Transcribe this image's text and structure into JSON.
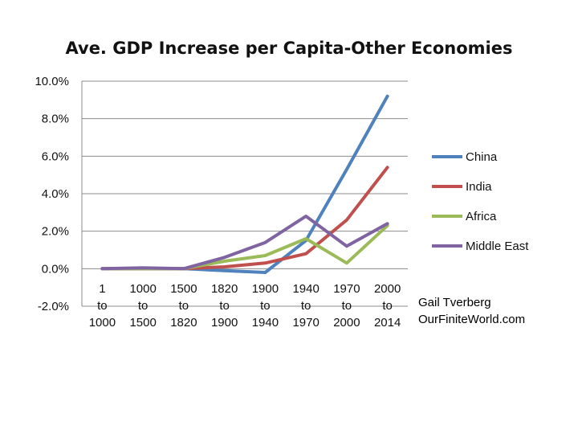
{
  "chart_data": {
    "type": "line",
    "title": "Ave. GDP Increase per Capita-Other Economies",
    "xlabel": "",
    "ylabel": "",
    "categories": [
      [
        "1",
        "to",
        "1000"
      ],
      [
        "1000",
        "to",
        "1500"
      ],
      [
        "1500",
        "to",
        "1820"
      ],
      [
        "1820",
        "to",
        "1900"
      ],
      [
        "1900",
        "to",
        "1940"
      ],
      [
        "1940",
        "to",
        "1970"
      ],
      [
        "1970",
        "to",
        "2000"
      ],
      [
        "2000",
        "to",
        "2014"
      ]
    ],
    "yticks": [
      "-2.0%",
      "0.0%",
      "2.0%",
      "4.0%",
      "6.0%",
      "8.0%",
      "10.0%"
    ],
    "ylim": [
      -2,
      10
    ],
    "grid": true,
    "legend_position": "right",
    "series": [
      {
        "name": "China",
        "color": "#4f81bd",
        "values": [
          0.0,
          0.0,
          0.0,
          -0.1,
          -0.2,
          1.5,
          5.3,
          9.2
        ]
      },
      {
        "name": "India",
        "color": "#c0504d",
        "values": [
          0.0,
          0.0,
          0.0,
          0.1,
          0.3,
          0.8,
          2.6,
          5.4
        ]
      },
      {
        "name": "Africa",
        "color": "#9bbb59",
        "values": [
          0.0,
          0.0,
          0.0,
          0.4,
          0.7,
          1.6,
          0.3,
          2.3
        ]
      },
      {
        "name": "Middle East",
        "color": "#8064a2",
        "values": [
          0.0,
          0.05,
          0.0,
          0.6,
          1.4,
          2.8,
          1.2,
          2.4
        ]
      }
    ]
  },
  "credit": {
    "author": "Gail Tverberg",
    "site": "OurFiniteWorld.com"
  }
}
